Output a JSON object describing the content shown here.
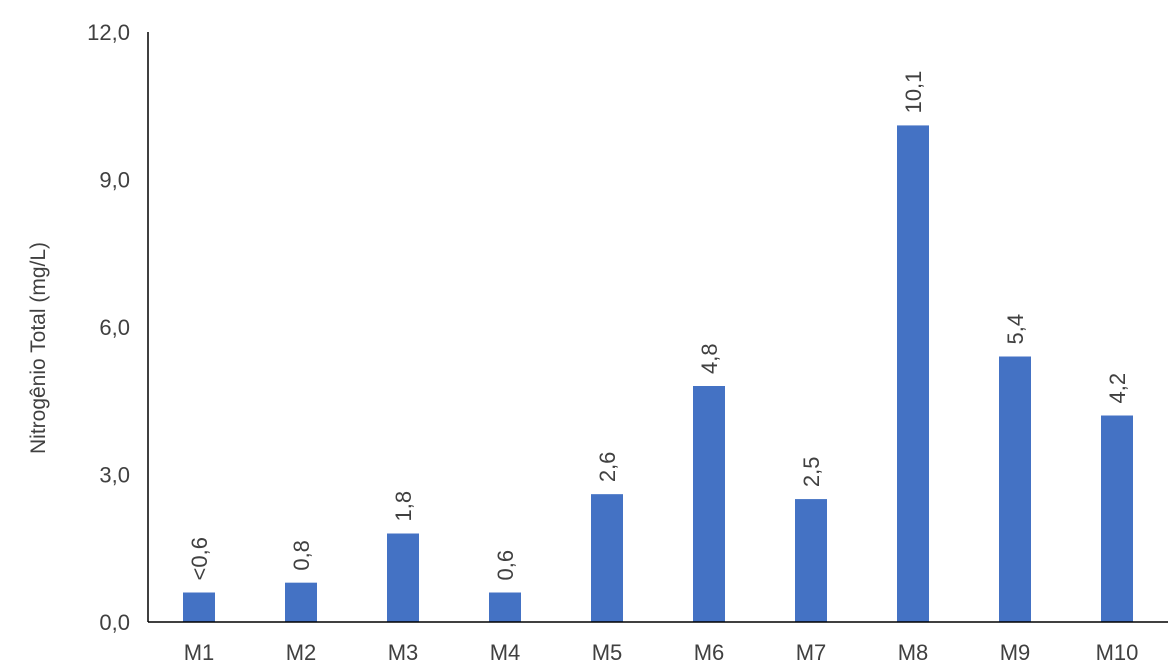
{
  "chart_data": {
    "type": "bar",
    "categories": [
      "M1",
      "M2",
      "M3",
      "M4",
      "M5",
      "M6",
      "M7",
      "M8",
      "M9",
      "M10"
    ],
    "values": [
      0.6,
      0.8,
      1.8,
      0.6,
      2.6,
      4.8,
      2.5,
      10.1,
      5.4,
      4.2
    ],
    "data_labels": [
      "<0,6",
      "0,8",
      "1,8",
      "0,6",
      "2,6",
      "4,8",
      "2,5",
      "10,1",
      "5,4",
      "4,2"
    ],
    "ylabel": "Nitrogênio Total (mg/L)",
    "ylim": [
      0,
      12
    ],
    "yticks": [
      0,
      3,
      6,
      9,
      12
    ],
    "ytick_labels": [
      "0,0",
      "3,0",
      "6,0",
      "9,0",
      "12,0"
    ],
    "grid": false,
    "bar_color": "#4472C4"
  }
}
